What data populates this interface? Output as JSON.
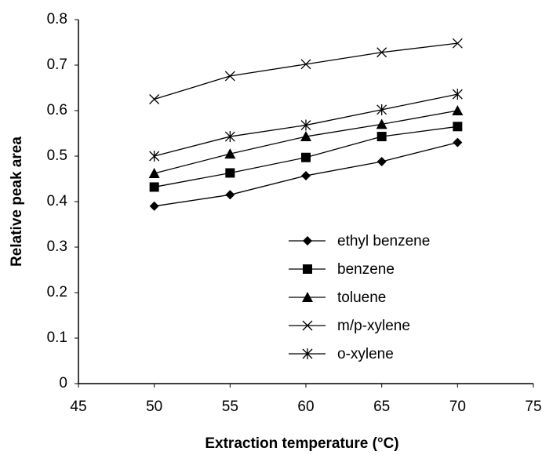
{
  "chart_data": {
    "type": "line",
    "xlabel": "Extraction temperature (°C)",
    "ylabel": "Relative peak area",
    "x": [
      50,
      55,
      60,
      65,
      70
    ],
    "series": [
      {
        "name": "ethyl benzene",
        "color": "#000000",
        "marker": "diamond",
        "values": [
          0.39,
          0.415,
          0.457,
          0.488,
          0.53
        ]
      },
      {
        "name": "benzene",
        "color": "#000000",
        "marker": "square",
        "values": [
          0.432,
          0.463,
          0.497,
          0.543,
          0.565
        ]
      },
      {
        "name": "toluene",
        "color": "#000000",
        "marker": "triangle",
        "values": [
          0.462,
          0.505,
          0.543,
          0.57,
          0.6
        ]
      },
      {
        "name": "m/p-xylene",
        "color": "#000000",
        "marker": "x",
        "values": [
          0.625,
          0.676,
          0.702,
          0.728,
          0.748
        ]
      },
      {
        "name": "o-xylene",
        "color": "#000000",
        "marker": "asterisk",
        "values": [
          0.5,
          0.543,
          0.568,
          0.602,
          0.636
        ]
      }
    ],
    "xlim": [
      45,
      75
    ],
    "xticks": [
      45,
      50,
      55,
      60,
      65,
      70,
      75
    ],
    "ylim": [
      0,
      0.8
    ],
    "yticks": [
      0,
      0.1,
      0.2,
      0.3,
      0.4,
      0.5,
      0.6,
      0.7,
      0.8
    ],
    "grid": false
  }
}
